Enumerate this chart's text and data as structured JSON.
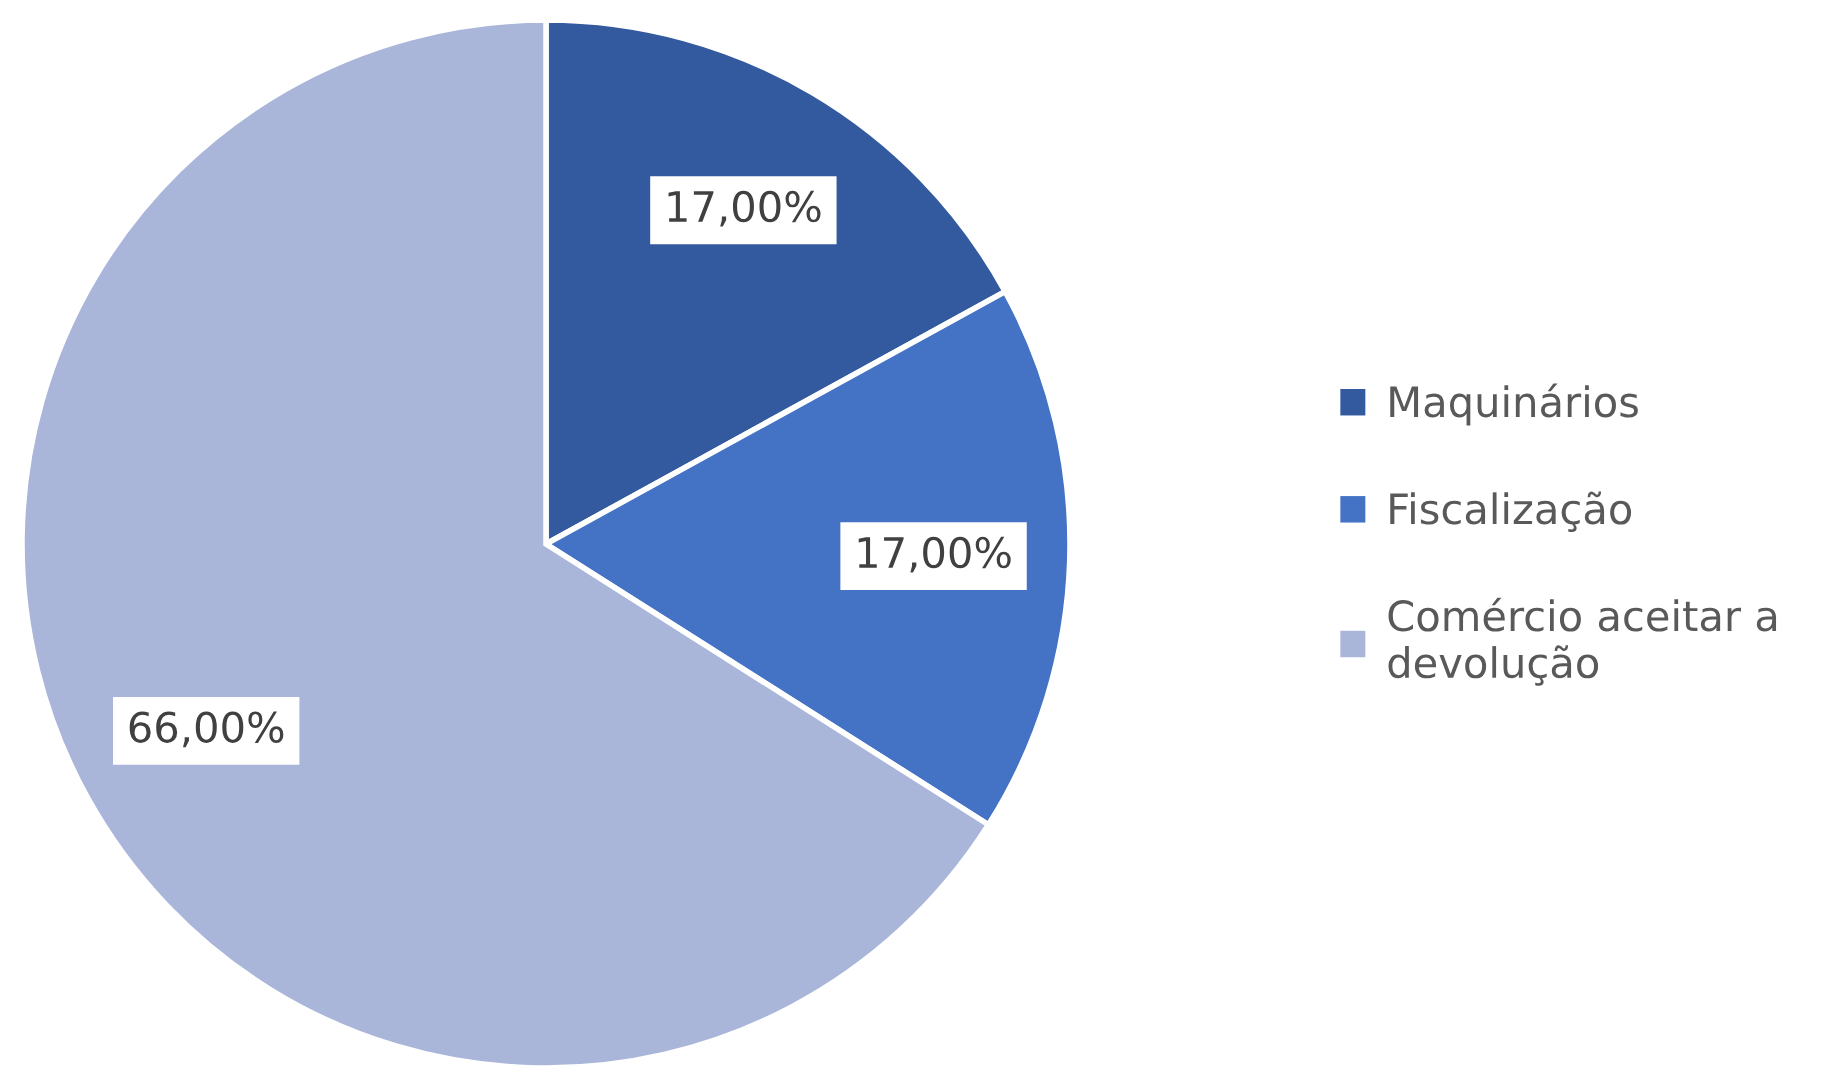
{
  "chart_data": {
    "type": "pie",
    "categories": [
      "Maquinários",
      "Fiscalização",
      "Comércio aceitar a devolução"
    ],
    "values": [
      17,
      17,
      66
    ],
    "value_labels": [
      "17,00%",
      "17,00%",
      "66,00%"
    ],
    "colors": [
      "#335a9f",
      "#4472c4",
      "#a9b6da"
    ],
    "legend": "right"
  }
}
